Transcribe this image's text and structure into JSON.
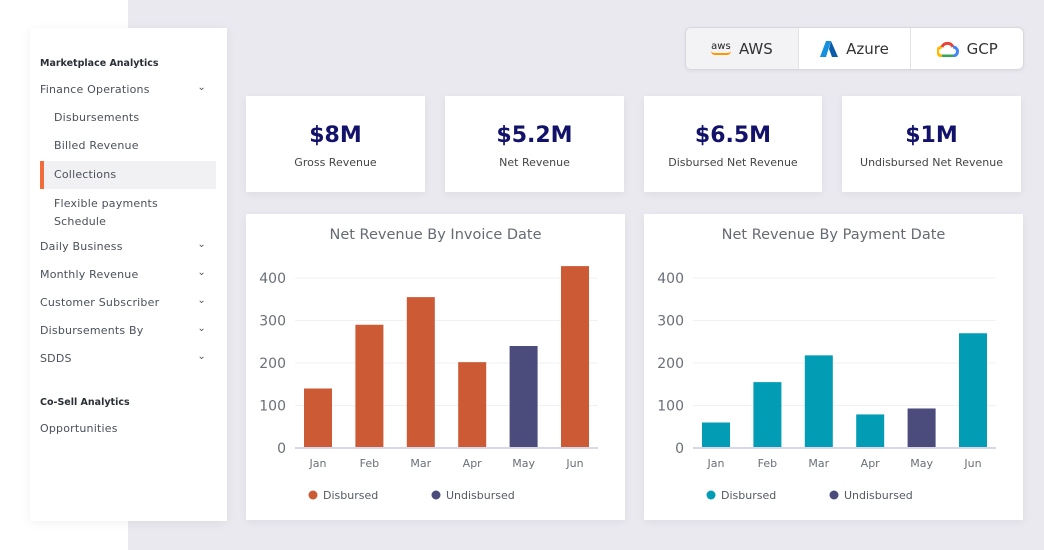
{
  "sidebar": {
    "section1": "Marketplace Analytics",
    "finance": "Finance Operations",
    "subs": [
      "Disbursements",
      "Billed Revenue",
      "Collections",
      "Flexible payments",
      "Schedule"
    ],
    "items": [
      "Daily Business",
      "Monthly Revenue",
      "Customer Subscriber",
      "Disbursements By",
      "SDDS"
    ],
    "section2": "Co-Sell Analytics",
    "opportunities": "Opportunities",
    "active": "Collections"
  },
  "cloud": {
    "options": [
      "AWS",
      "Azure",
      "GCP"
    ],
    "selected": "AWS",
    "aws_logo_text": "aws"
  },
  "kpis": [
    {
      "value": "$8M",
      "label": "Gross Revenue"
    },
    {
      "value": "$5.2M",
      "label": "Net Revenue"
    },
    {
      "value": "$6.5M",
      "label": "Disbursed Net Revenue"
    },
    {
      "value": "$1M",
      "label": "Undisbursed Net Revenue"
    }
  ],
  "chart_data": [
    {
      "type": "bar",
      "title": "Net Revenue By Invoice Date",
      "categories": [
        "Jan",
        "Feb",
        "Mar",
        "Apr",
        "May",
        "Jun"
      ],
      "values": [
        140,
        290,
        355,
        202,
        240,
        428
      ],
      "status": [
        "Disbursed",
        "Disbursed",
        "Disbursed",
        "Disbursed",
        "Undisbursed",
        "Disbursed"
      ],
      "yticks": [
        0,
        100,
        200,
        300,
        400
      ],
      "ylim": [
        0,
        400
      ],
      "grid": true,
      "legend_position": "bottom",
      "legend": [
        {
          "name": "Disbursed",
          "color": "#cb5a35"
        },
        {
          "name": "Undisbursed",
          "color": "#4b4b7c"
        }
      ]
    },
    {
      "type": "bar",
      "title": "Net Revenue By Payment Date",
      "categories": [
        "Jan",
        "Feb",
        "Mar",
        "Apr",
        "May",
        "Jun"
      ],
      "values": [
        60,
        155,
        218,
        79,
        93,
        270
      ],
      "status": [
        "Disbursed",
        "Disbursed",
        "Disbursed",
        "Disbursed",
        "Undisbursed",
        "Disbursed"
      ],
      "yticks": [
        0,
        100,
        200,
        300,
        400
      ],
      "ylim": [
        0,
        400
      ],
      "grid": true,
      "legend_position": "bottom",
      "legend": [
        {
          "name": "Disbursed",
          "color": "#029db5"
        },
        {
          "name": "Undisbursed",
          "color": "#4b4b7c"
        }
      ]
    }
  ]
}
